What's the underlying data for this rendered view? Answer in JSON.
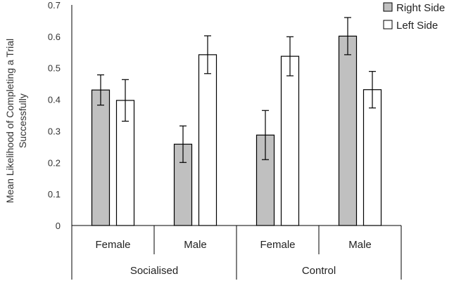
{
  "chart_data": {
    "type": "bar",
    "title": "",
    "ylabel_lines": [
      "Mean Likelihood of Completing a Trial",
      "Successfully"
    ],
    "ylim": [
      0,
      0.7
    ],
    "yticks": [
      "0",
      "0.1",
      "0.2",
      "0.3",
      "0.4",
      "0.5",
      "0.6",
      "0.7"
    ],
    "groups": [
      "Socialised",
      "Control"
    ],
    "categories": [
      "Female",
      "Male",
      "Female",
      "Male"
    ],
    "series": [
      {
        "name": "Right Side",
        "color": "#c0c0c0",
        "values": [
          0.43,
          0.258,
          0.287,
          0.601
        ],
        "error": [
          0.048,
          0.058,
          0.078,
          0.059
        ]
      },
      {
        "name": "Left Side",
        "color": "#ffffff",
        "values": [
          0.397,
          0.542,
          0.537,
          0.431
        ],
        "error": [
          0.066,
          0.06,
          0.062,
          0.058
        ]
      }
    ],
    "legend_position": "top-right",
    "grid": false
  }
}
